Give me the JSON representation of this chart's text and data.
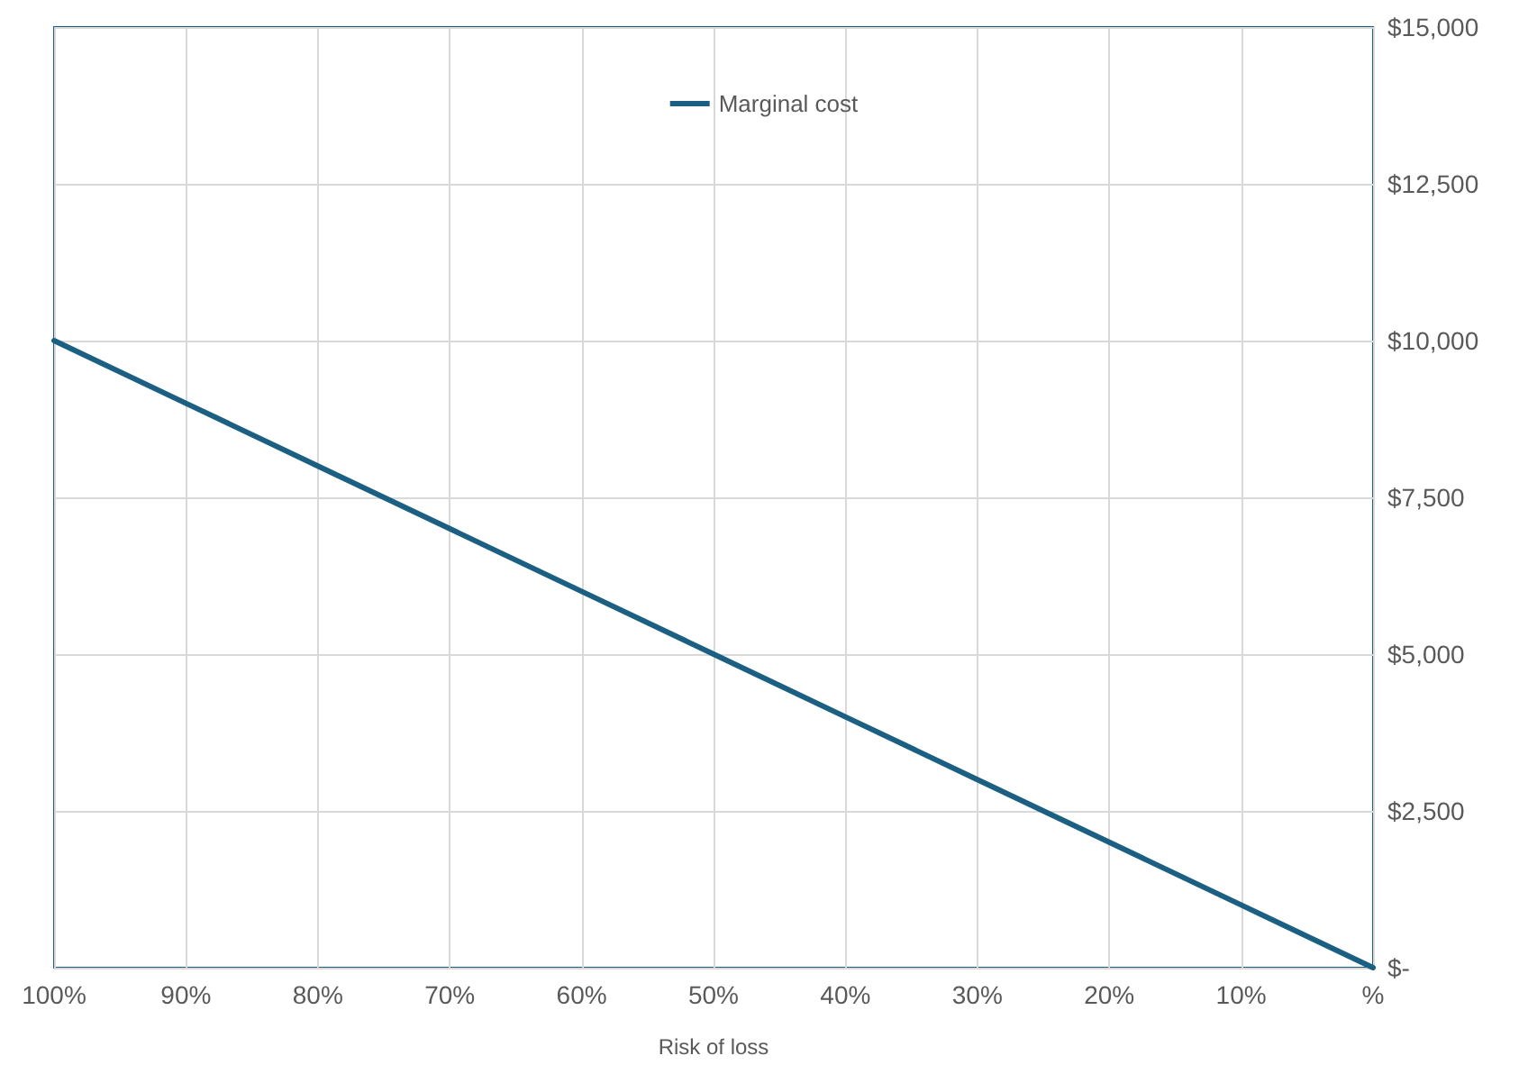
{
  "chart_data": {
    "type": "line",
    "xlabel": "Risk of loss",
    "x": [
      100,
      90,
      80,
      70,
      60,
      50,
      40,
      30,
      20,
      10,
      0
    ],
    "series": [
      {
        "name": "Marginal cost",
        "color": "#1b5f82",
        "values": [
          10000,
          9000,
          8000,
          7000,
          6000,
          5000,
          4000,
          3000,
          2000,
          1000,
          0
        ]
      }
    ],
    "xlim": [
      100,
      0
    ],
    "xticks": [
      {
        "value": 100,
        "label": "100%"
      },
      {
        "value": 90,
        "label": "90%"
      },
      {
        "value": 80,
        "label": "80%"
      },
      {
        "value": 70,
        "label": "70%"
      },
      {
        "value": 60,
        "label": "60%"
      },
      {
        "value": 50,
        "label": "50%"
      },
      {
        "value": 40,
        "label": "40%"
      },
      {
        "value": 30,
        "label": "30%"
      },
      {
        "value": 20,
        "label": "20%"
      },
      {
        "value": 10,
        "label": "10%"
      },
      {
        "value": 0,
        "label": "%"
      }
    ],
    "ylim": [
      0,
      15000
    ],
    "yticks": [
      {
        "value": 0,
        "label": "$-"
      },
      {
        "value": 2500,
        "label": "$2,500"
      },
      {
        "value": 5000,
        "label": "$5,000"
      },
      {
        "value": 7500,
        "label": "$7,500"
      },
      {
        "value": 10000,
        "label": "$10,000"
      },
      {
        "value": 12500,
        "label": "$12,500"
      },
      {
        "value": 15000,
        "label": "$15,000"
      }
    ],
    "grid": true,
    "legend": "top",
    "marker": "none",
    "line_style": "solid"
  }
}
